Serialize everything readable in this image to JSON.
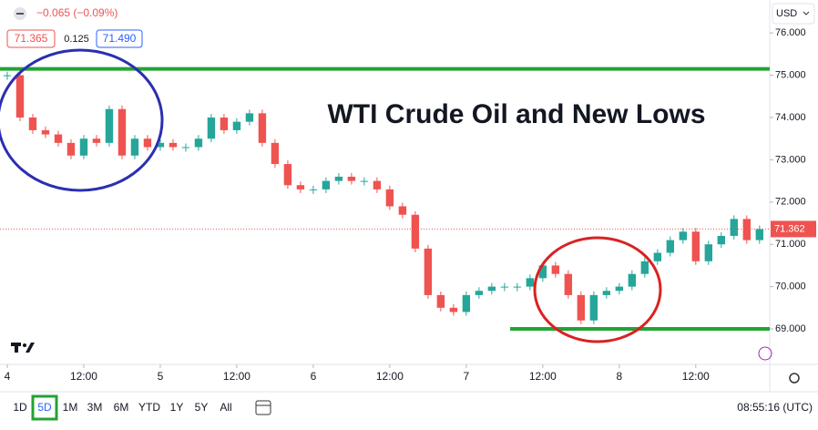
{
  "header": {
    "change": "−0.065 (−0.09%)",
    "bid": "71.365",
    "spread": "0.125",
    "ask": "71.490"
  },
  "currency": "USD",
  "time": "08:55:16 (UTC)",
  "ranges": [
    "1D",
    "5D",
    "1M",
    "3M",
    "6M",
    "YTD",
    "1Y",
    "5Y",
    "All"
  ],
  "chart_data": {
    "type": "candlestick",
    "title": "WTI Crude Oil and New Lows",
    "x": [
      0,
      2,
      4,
      6,
      8,
      10,
      12,
      14,
      16,
      18,
      20,
      22,
      24,
      26,
      28,
      30,
      32,
      34,
      36,
      38,
      40,
      42,
      44,
      46,
      48,
      50,
      52,
      54,
      56,
      58,
      60,
      62,
      64,
      66,
      68,
      70,
      72,
      74,
      76,
      78,
      80,
      82,
      84,
      86,
      88,
      90,
      92,
      94,
      96,
      98,
      100,
      102,
      104,
      106,
      108,
      110,
      112,
      114,
      116,
      118
    ],
    "values": [
      75.0,
      74.0,
      73.7,
      73.6,
      73.4,
      73.1,
      73.5,
      73.4,
      74.2,
      73.1,
      73.5,
      73.3,
      73.4,
      73.3,
      73.3,
      73.5,
      74.0,
      73.7,
      73.9,
      74.1,
      73.4,
      72.9,
      72.4,
      72.3,
      72.3,
      72.5,
      72.6,
      72.5,
      72.5,
      72.3,
      71.9,
      71.7,
      70.9,
      69.8,
      69.5,
      69.4,
      69.8,
      69.9,
      70.0,
      70.0,
      70.0,
      70.2,
      70.5,
      70.3,
      69.8,
      69.2,
      69.8,
      69.9,
      70.0,
      70.3,
      70.6,
      70.8,
      71.1,
      71.3,
      70.6,
      71.0,
      71.2,
      71.6,
      71.1,
      71.36
    ],
    "xlim": [
      -1.14,
      119.6
    ],
    "xticks": [
      {
        "value": 0,
        "label": "4"
      },
      {
        "value": 12,
        "label": "12:00"
      },
      {
        "value": 24,
        "label": "5"
      },
      {
        "value": 36,
        "label": "12:00"
      },
      {
        "value": 48,
        "label": "6"
      },
      {
        "value": 60,
        "label": "12:00"
      },
      {
        "value": 72,
        "label": "7"
      },
      {
        "value": 84,
        "label": "12:00"
      },
      {
        "value": 96,
        "label": "8"
      },
      {
        "value": 108,
        "label": "12:00"
      }
    ],
    "ylim": [
      68.16,
      76.78
    ],
    "yticks": [
      {
        "value": 69,
        "label": "69.000"
      },
      {
        "value": 70,
        "label": "70.000"
      },
      {
        "value": 71,
        "label": "71.000"
      },
      {
        "value": 72,
        "label": "72.000"
      },
      {
        "value": 73,
        "label": "73.000"
      },
      {
        "value": 74,
        "label": "74.000"
      },
      {
        "value": 75,
        "label": "75.000"
      },
      {
        "value": 76,
        "label": "76.000"
      }
    ],
    "last_price": {
      "value": 71.362,
      "label": "71.362"
    },
    "levels": [
      75.15,
      69.0
    ],
    "up_color": "#26a69a",
    "down_color": "#ef5350",
    "level_color": "#22a334"
  }
}
